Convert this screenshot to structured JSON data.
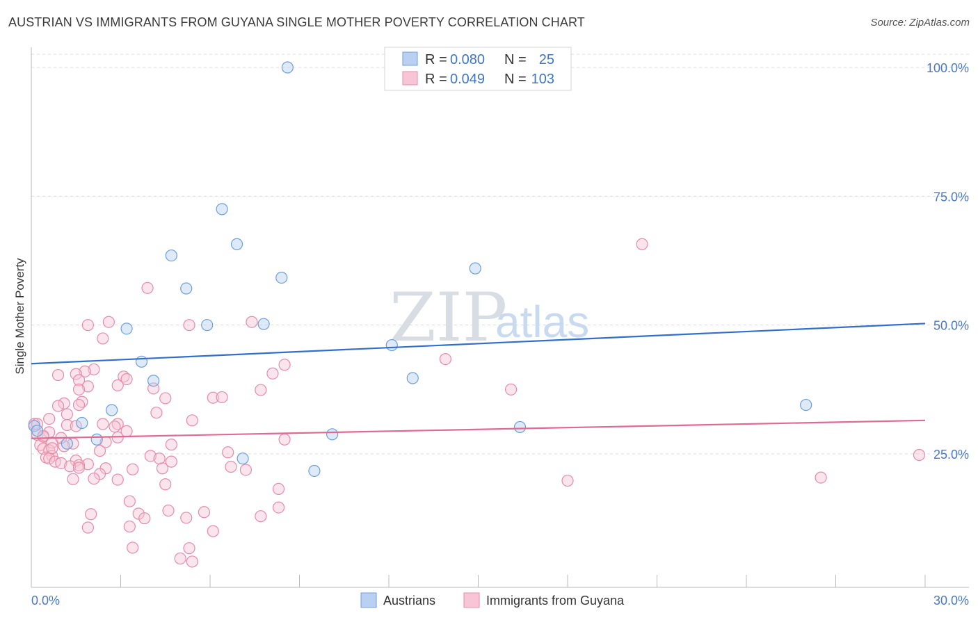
{
  "title": "AUSTRIAN VS IMMIGRANTS FROM GUYANA SINGLE MOTHER POVERTY CORRELATION CHART",
  "source": "Source: ZipAtlas.com",
  "watermark": {
    "zip": "ZIP",
    "atlas": "atlas"
  },
  "legend": {
    "rows": [
      {
        "r_label": "R =",
        "r_value": "0.080",
        "n_label": "N =",
        "n_value": "25"
      },
      {
        "r_label": "R =",
        "r_value": "0.049",
        "n_label": "N =",
        "n_value": "103"
      }
    ]
  },
  "chart_data": {
    "type": "scatter",
    "title": "AUSTRIAN VS IMMIGRANTS FROM GUYANA SINGLE MOTHER POVERTY CORRELATION CHART",
    "xlabel": "",
    "ylabel": "Single Mother Poverty",
    "xlim": [
      0,
      30
    ],
    "ylim": [
      0,
      100
    ],
    "x_tick_labels": [
      "0.0%",
      "30.0%"
    ],
    "y_tick_labels": [
      "25.0%",
      "50.0%",
      "75.0%",
      "100.0%"
    ],
    "y_ticks": [
      25,
      50,
      75,
      100
    ],
    "grid": true,
    "legend_position": "top-center",
    "series": [
      {
        "name": "Austrians",
        "color": "#6c9ee0",
        "fill": "#b9d0f2",
        "line_color": "#2f6fce",
        "trend": [
          [
            0,
            42.5
          ],
          [
            30,
            50.3
          ]
        ],
        "points": [
          [
            8.6,
            100
          ],
          [
            6.4,
            72.5
          ],
          [
            6.9,
            65.7
          ],
          [
            4.7,
            63.5
          ],
          [
            14.9,
            61
          ],
          [
            8.4,
            59.2
          ],
          [
            5.2,
            57.1
          ],
          [
            3.2,
            49.3
          ],
          [
            5.9,
            50.0
          ],
          [
            7.8,
            50.2
          ],
          [
            12.1,
            46.1
          ],
          [
            3.7,
            42.9
          ],
          [
            4.1,
            39.2
          ],
          [
            12.8,
            39.7
          ],
          [
            26.0,
            34.5
          ],
          [
            2.7,
            33.5
          ],
          [
            1.7,
            31.0
          ],
          [
            16.4,
            30.2
          ],
          [
            2.2,
            27.8
          ],
          [
            1.2,
            27.0
          ],
          [
            10.1,
            28.8
          ],
          [
            7.1,
            24.1
          ],
          [
            9.5,
            21.7
          ],
          [
            0.1,
            30.4
          ],
          [
            0.2,
            29.5
          ]
        ]
      },
      {
        "name": "Immigrants from Guyana",
        "color": "#e88aa8",
        "fill": "#f7c5d5",
        "line_color": "#e06a92",
        "trend": [
          [
            0,
            28.0
          ],
          [
            30,
            31.5
          ]
        ],
        "points": [
          [
            20.5,
            65.7
          ],
          [
            3.9,
            57.2
          ],
          [
            2.6,
            50.6
          ],
          [
            1.9,
            50.0
          ],
          [
            5.3,
            50.0
          ],
          [
            7.4,
            50.6
          ],
          [
            2.4,
            47.4
          ],
          [
            13.9,
            43.4
          ],
          [
            8.5,
            42.3
          ],
          [
            2.1,
            41.4
          ],
          [
            1.8,
            41.0
          ],
          [
            1.5,
            40.5
          ],
          [
            3.1,
            40.0
          ],
          [
            3.2,
            39.5
          ],
          [
            1.6,
            39.3
          ],
          [
            2.9,
            38.3
          ],
          [
            1.9,
            38.1
          ],
          [
            8.1,
            40.6
          ],
          [
            0.9,
            40.3
          ],
          [
            1.6,
            37.5
          ],
          [
            4.1,
            37.7
          ],
          [
            7.7,
            37.4
          ],
          [
            16.1,
            37.5
          ],
          [
            4.5,
            35.8
          ],
          [
            6.1,
            35.9
          ],
          [
            6.4,
            36.0
          ],
          [
            1.7,
            35.1
          ],
          [
            1.1,
            34.8
          ],
          [
            1.6,
            34.5
          ],
          [
            0.9,
            34.3
          ],
          [
            4.2,
            33.0
          ],
          [
            1.2,
            32.7
          ],
          [
            0.6,
            31.8
          ],
          [
            5.4,
            31.5
          ],
          [
            2.4,
            30.8
          ],
          [
            2.9,
            30.8
          ],
          [
            1.2,
            30.6
          ],
          [
            1.5,
            30.4
          ],
          [
            0.1,
            30.8
          ],
          [
            0.6,
            29.2
          ],
          [
            0.2,
            28.7
          ],
          [
            0.4,
            28.3
          ],
          [
            2.9,
            28.2
          ],
          [
            8.5,
            27.8
          ],
          [
            1.4,
            27.0
          ],
          [
            0.7,
            27.2
          ],
          [
            1.1,
            26.5
          ],
          [
            4.7,
            26.8
          ],
          [
            0.3,
            26.7
          ],
          [
            0.4,
            26.0
          ],
          [
            0.6,
            25.7
          ],
          [
            0.7,
            24.6
          ],
          [
            0.5,
            24.3
          ],
          [
            2.3,
            25.6
          ],
          [
            6.6,
            25.3
          ],
          [
            4.0,
            24.6
          ],
          [
            0.6,
            24.1
          ],
          [
            1.5,
            23.7
          ],
          [
            0.8,
            23.5
          ],
          [
            1.0,
            23.2
          ],
          [
            4.7,
            23.5
          ],
          [
            1.9,
            23.0
          ],
          [
            1.6,
            22.8
          ],
          [
            1.3,
            22.6
          ],
          [
            2.5,
            22.2
          ],
          [
            3.4,
            22.0
          ],
          [
            4.4,
            22.2
          ],
          [
            7.2,
            21.9
          ],
          [
            1.6,
            22.3
          ],
          [
            2.3,
            21.1
          ],
          [
            2.1,
            20.2
          ],
          [
            2.9,
            20.0
          ],
          [
            1.4,
            20.1
          ],
          [
            4.5,
            19.1
          ],
          [
            18.0,
            19.8
          ],
          [
            26.5,
            20.4
          ],
          [
            29.8,
            24.8
          ],
          [
            8.3,
            18.2
          ],
          [
            3.3,
            15.8
          ],
          [
            8.3,
            14.6
          ],
          [
            3.6,
            13.4
          ],
          [
            4.6,
            14.0
          ],
          [
            2.0,
            13.3
          ],
          [
            5.2,
            12.6
          ],
          [
            3.8,
            12.5
          ],
          [
            5.8,
            13.7
          ],
          [
            7.7,
            12.9
          ],
          [
            1.9,
            10.7
          ],
          [
            3.3,
            10.9
          ],
          [
            6.1,
            10.0
          ],
          [
            3.4,
            6.8
          ],
          [
            5.3,
            6.7
          ],
          [
            5.0,
            4.7
          ],
          [
            5.4,
            4.1
          ],
          [
            0.2,
            30.8
          ],
          [
            0.4,
            28.5
          ],
          [
            0.7,
            26.1
          ],
          [
            2.5,
            27.3
          ],
          [
            3.2,
            29.4
          ],
          [
            4.3,
            24.1
          ],
          [
            6.7,
            22.5
          ],
          [
            1.0,
            28.1
          ],
          [
            2.8,
            30.3
          ]
        ]
      }
    ]
  },
  "bottom_legend": [
    {
      "label": "Austrians"
    },
    {
      "label": "Immigrants from Guyana"
    }
  ]
}
